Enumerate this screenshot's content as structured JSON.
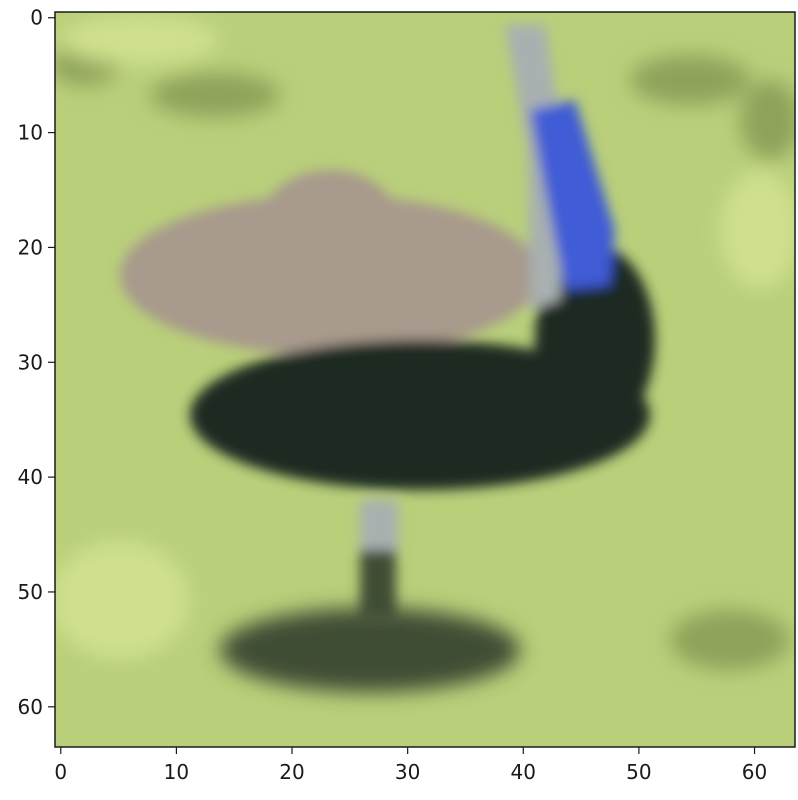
{
  "image": {
    "subject": "bird",
    "pixel_grid": [
      64,
      64
    ],
    "colors": {
      "background_grass": "#b9cf7a",
      "grass_dark": "#8fa25a",
      "body_dark": "#1f2a24",
      "body_mauve": "#a89a8c",
      "neck_blue": "#3f5bd6",
      "neck_pale": "#a8b0b0",
      "shadow": "#3f4d35"
    }
  },
  "axes": {
    "x_ticks": [
      "0",
      "10",
      "20",
      "30",
      "40",
      "50",
      "60"
    ],
    "y_ticks": [
      "0",
      "10",
      "20",
      "30",
      "40",
      "50",
      "60"
    ],
    "xlim": [
      -0.5,
      63.5
    ],
    "ylim": [
      63.5,
      -0.5
    ]
  }
}
